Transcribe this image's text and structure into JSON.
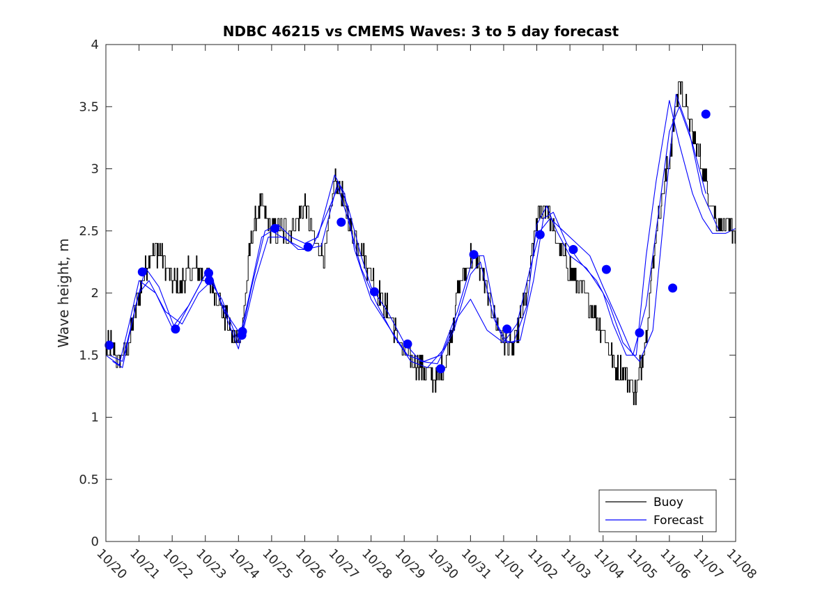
{
  "chart_data": {
    "type": "line",
    "title": "NDBC 46215 vs CMEMS Waves: 3 to 5 day forecast",
    "xlabel": "",
    "ylabel": "Wave height, m",
    "x_unit": "days since 10/20",
    "xlim": [
      0,
      19
    ],
    "ylim": [
      0,
      4
    ],
    "y_ticks": [
      0,
      0.5,
      1,
      1.5,
      2,
      2.5,
      3,
      3.5,
      4
    ],
    "y_tick_labels": [
      "0",
      "0.5",
      "1",
      "1.5",
      "2",
      "2.5",
      "3",
      "3.5",
      "4"
    ],
    "x_ticks": [
      0,
      1,
      2,
      3,
      4,
      5,
      6,
      7,
      8,
      9,
      10,
      11,
      12,
      13,
      14,
      15,
      16,
      17,
      18,
      19
    ],
    "x_tick_labels": [
      "10/20",
      "10/21",
      "10/22",
      "10/23",
      "10/24",
      "10/25",
      "10/26",
      "10/27",
      "10/28",
      "10/29",
      "10/30",
      "10/31",
      "11/01",
      "11/02",
      "11/03",
      "11/04",
      "11/05",
      "11/06",
      "11/07",
      "11/08"
    ],
    "legend": {
      "position": "bottom-right",
      "entries": [
        {
          "name": "Buoy",
          "color": "#000000"
        },
        {
          "name": "Forecast",
          "color": "#0000ff"
        }
      ]
    },
    "series": [
      {
        "name": "Buoy",
        "color": "#000000",
        "style": "step-noisy",
        "noise": 0.1,
        "x": [
          0,
          0.15,
          0.4,
          0.7,
          1.0,
          1.3,
          1.6,
          2.0,
          2.2,
          2.6,
          3.0,
          3.3,
          3.6,
          3.9,
          4.1,
          4.4,
          4.7,
          5.0,
          5.5,
          6.0,
          6.3,
          6.6,
          6.9,
          7.1,
          7.4,
          7.8,
          8.2,
          8.6,
          9.0,
          9.5,
          10.0,
          10.3,
          10.6,
          11.0,
          11.3,
          11.7,
          12.0,
          12.3,
          12.7,
          13.0,
          13.3,
          13.6,
          14.0,
          14.4,
          14.8,
          15.0,
          15.3,
          15.6,
          16.0,
          16.3,
          16.6,
          17.0,
          17.3,
          17.6,
          18.0,
          18.4,
          18.8,
          19.0
        ],
        "y": [
          1.55,
          1.6,
          1.45,
          1.6,
          2.0,
          2.3,
          2.35,
          2.1,
          2.05,
          2.2,
          2.15,
          2.0,
          1.8,
          1.6,
          1.7,
          2.5,
          2.7,
          2.5,
          2.5,
          2.7,
          2.4,
          2.3,
          2.9,
          2.8,
          2.5,
          2.3,
          2.0,
          1.8,
          1.5,
          1.4,
          1.3,
          1.5,
          2.0,
          2.3,
          2.2,
          1.8,
          1.6,
          1.55,
          2.0,
          2.6,
          2.7,
          2.4,
          2.2,
          2.0,
          1.8,
          1.7,
          1.45,
          1.35,
          1.2,
          1.7,
          2.5,
          3.1,
          3.7,
          3.4,
          3.0,
          2.6,
          2.5,
          2.5
        ]
      },
      {
        "name": "Forecast",
        "color": "#0000ff",
        "style": "line",
        "x": [
          0,
          0.4,
          0.7,
          1.0,
          1.5,
          2.0,
          2.5,
          3.0,
          3.5,
          4.0,
          4.3,
          4.7,
          5.0,
          5.5,
          6.0,
          6.5,
          7.0,
          7.3,
          7.7,
          8.0,
          8.5,
          9.0,
          9.5,
          10.0,
          10.5,
          11.0,
          11.3,
          11.7,
          12.0,
          12.3,
          12.7,
          13.0,
          13.3,
          13.6,
          14.0,
          14.5,
          15.0,
          15.3,
          15.7,
          16.0,
          16.3,
          16.6,
          17.0,
          17.3,
          17.7,
          18.0,
          18.3,
          18.7,
          19.0
        ],
        "y": [
          1.5,
          1.42,
          1.75,
          2.1,
          2.0,
          1.72,
          1.9,
          2.15,
          1.95,
          1.6,
          1.95,
          2.45,
          2.5,
          2.42,
          2.35,
          2.38,
          2.9,
          2.7,
          2.3,
          2.05,
          1.85,
          1.6,
          1.45,
          1.43,
          1.7,
          2.15,
          2.25,
          1.8,
          1.62,
          1.6,
          1.9,
          2.55,
          2.7,
          2.5,
          2.3,
          2.2,
          2.0,
          1.75,
          1.5,
          1.5,
          2.3,
          2.9,
          3.55,
          3.2,
          2.8,
          2.6,
          2.48,
          2.48,
          2.52
        ]
      },
      {
        "name": "Forecast",
        "color": "#0000ff",
        "style": "line",
        "x": [
          0.2,
          0.5,
          0.9,
          1.2,
          1.6,
          2.1,
          2.6,
          3.1,
          3.5,
          4.0,
          4.4,
          4.8,
          5.2,
          5.6,
          6.0,
          6.4,
          6.9,
          7.2,
          7.5,
          8.0,
          8.6,
          9.1,
          9.6,
          10.1,
          10.6,
          11.1,
          11.4,
          11.8,
          12.1,
          12.5,
          12.9,
          13.2,
          13.5,
          13.9,
          14.3,
          14.8,
          15.2,
          15.6,
          16.1,
          16.5,
          16.9,
          17.2,
          17.6,
          18.0,
          18.5
        ],
        "y": [
          1.45,
          1.4,
          1.9,
          2.2,
          2.05,
          1.7,
          1.95,
          2.2,
          1.9,
          1.55,
          2.05,
          2.5,
          2.55,
          2.45,
          2.4,
          2.45,
          2.95,
          2.8,
          2.35,
          1.95,
          1.7,
          1.5,
          1.45,
          1.5,
          1.85,
          2.3,
          2.3,
          1.75,
          1.6,
          1.62,
          2.1,
          2.6,
          2.65,
          2.4,
          2.25,
          2.1,
          1.9,
          1.6,
          1.45,
          1.7,
          2.8,
          3.6,
          3.3,
          2.8,
          2.5
        ]
      },
      {
        "name": "Forecast",
        "color": "#0000ff",
        "style": "line",
        "x": [
          0.1,
          0.5,
          1.0,
          1.3,
          1.8,
          2.3,
          2.8,
          3.2,
          3.6,
          4.1,
          4.5,
          4.9,
          5.4,
          5.8,
          6.2,
          6.6,
          7.0,
          7.3,
          7.7,
          8.2,
          8.7,
          9.2,
          9.7,
          10.2,
          10.6,
          11.0,
          11.5,
          12.0,
          12.4,
          12.8,
          13.1,
          13.4,
          13.8,
          14.2,
          14.6,
          15.0,
          15.5,
          15.9,
          16.3,
          16.7,
          17.0,
          17.3,
          17.7,
          18.1
        ],
        "y": [
          1.5,
          1.45,
          2.0,
          2.1,
          1.85,
          1.75,
          2.0,
          2.1,
          1.85,
          1.65,
          2.1,
          2.45,
          2.45,
          2.35,
          2.35,
          2.6,
          2.85,
          2.6,
          2.2,
          1.9,
          1.65,
          1.45,
          1.4,
          1.55,
          1.8,
          1.95,
          1.7,
          1.6,
          1.75,
          2.2,
          2.5,
          2.6,
          2.5,
          2.4,
          2.3,
          2.05,
          1.75,
          1.5,
          1.9,
          2.7,
          3.3,
          3.5,
          3.2,
          2.8
        ]
      }
    ],
    "markers": {
      "name": "Forecast",
      "color": "#0000ff",
      "x": [
        0.1,
        1.1,
        2.1,
        3.1,
        3.12,
        4.1,
        4.12,
        5.1,
        6.1,
        7.1,
        8.1,
        9.1,
        10.1,
        11.1,
        12.1,
        13.1,
        14.1,
        15.1,
        16.1,
        17.1,
        18.1
      ],
      "y": [
        1.58,
        2.17,
        1.71,
        2.16,
        2.1,
        1.66,
        1.69,
        2.52,
        2.37,
        2.57,
        2.01,
        1.59,
        1.39,
        2.31,
        1.71,
        2.47,
        2.35,
        2.19,
        1.68,
        2.04,
        3.44
      ]
    }
  }
}
